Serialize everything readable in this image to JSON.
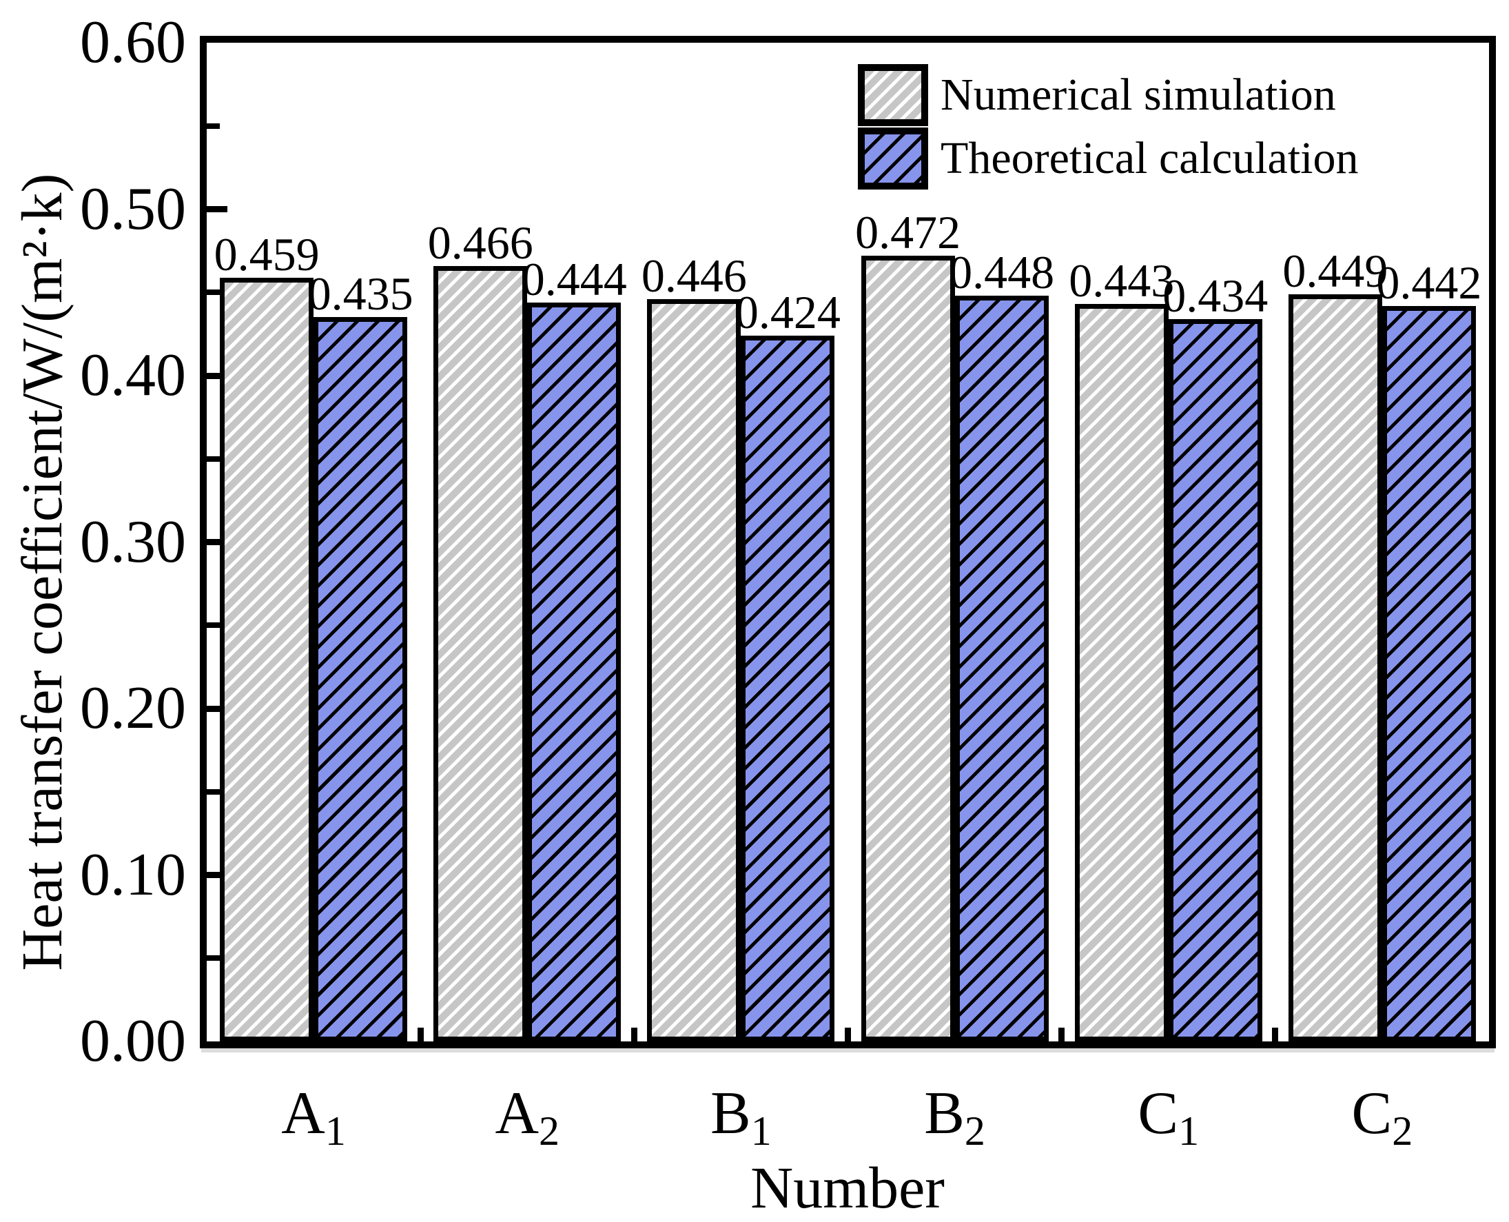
{
  "chart_data": {
    "type": "bar",
    "title": "",
    "xlabel": "Number",
    "ylabel": "Heat transfer coefficient/W/(m²·k)",
    "categories": [
      {
        "base": "A",
        "sub": "1"
      },
      {
        "base": "A",
        "sub": "2"
      },
      {
        "base": "B",
        "sub": "1"
      },
      {
        "base": "B",
        "sub": "2"
      },
      {
        "base": "C",
        "sub": "1"
      },
      {
        "base": "C",
        "sub": "2"
      }
    ],
    "series": [
      {
        "name": "Numerical simulation",
        "values": [
          0.459,
          0.466,
          0.446,
          0.472,
          0.443,
          0.449
        ],
        "labels": [
          "0.459",
          "0.466",
          "0.446",
          "0.472",
          "0.443",
          "0.449"
        ],
        "fill": "#c6c6c6",
        "hatch": "white-diagonal-stripes"
      },
      {
        "name": "Theoretical calculation",
        "values": [
          0.435,
          0.444,
          0.424,
          0.448,
          0.434,
          0.442
        ],
        "labels": [
          "0.435",
          "0.444",
          "0.424",
          "0.448",
          "0.434",
          "0.442"
        ],
        "fill": "#8794ec",
        "hatch": "black-diagonal-stripes"
      }
    ],
    "ylim": [
      0,
      0.6
    ],
    "y_ticks": [
      {
        "value": 0.0,
        "label": "0.00"
      },
      {
        "value": 0.1,
        "label": "0.10"
      },
      {
        "value": 0.2,
        "label": "0.20"
      },
      {
        "value": 0.3,
        "label": "0.30"
      },
      {
        "value": 0.4,
        "label": "0.40"
      },
      {
        "value": 0.5,
        "label": "0.50"
      },
      {
        "value": 0.6,
        "label": "0.60"
      }
    ],
    "y_minor_step": 0.05,
    "grid": false,
    "legend_position": "top-right-inside",
    "axis_color": "#000000",
    "background": "#ffffff"
  }
}
